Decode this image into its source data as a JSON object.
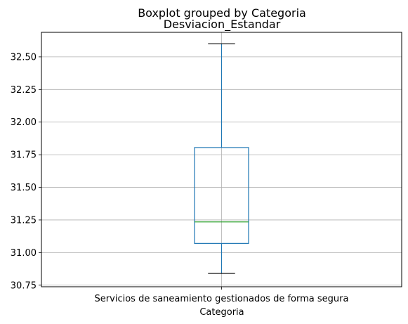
{
  "chart_data": {
    "type": "box",
    "suptitle": "Boxplot grouped by Categoria",
    "title": "Desviacion_Estandar",
    "xlabel": "Categoria",
    "ylabel": "",
    "categories": [
      "Servicios de saneamiento gestionados de forma segura"
    ],
    "boxes": [
      {
        "category": "Servicios de saneamiento gestionados de forma segura",
        "whisker_low": 30.84,
        "q1": 31.07,
        "median": 31.235,
        "q3": 31.805,
        "whisker_high": 32.6
      }
    ],
    "y_ticks": [
      30.75,
      31.0,
      31.25,
      31.5,
      31.75,
      32.0,
      32.25,
      32.5
    ],
    "y_tick_labels": [
      "30.75",
      "31.00",
      "31.25",
      "31.50",
      "31.75",
      "32.00",
      "32.25",
      "32.50"
    ],
    "ylim": [
      30.738,
      32.688
    ],
    "grid": true,
    "colors": {
      "box": "#1f77b4",
      "median": "#2ca02c",
      "whisker": "#1f77b4",
      "cap": "#000000",
      "grid": "#b0b0b0"
    }
  }
}
